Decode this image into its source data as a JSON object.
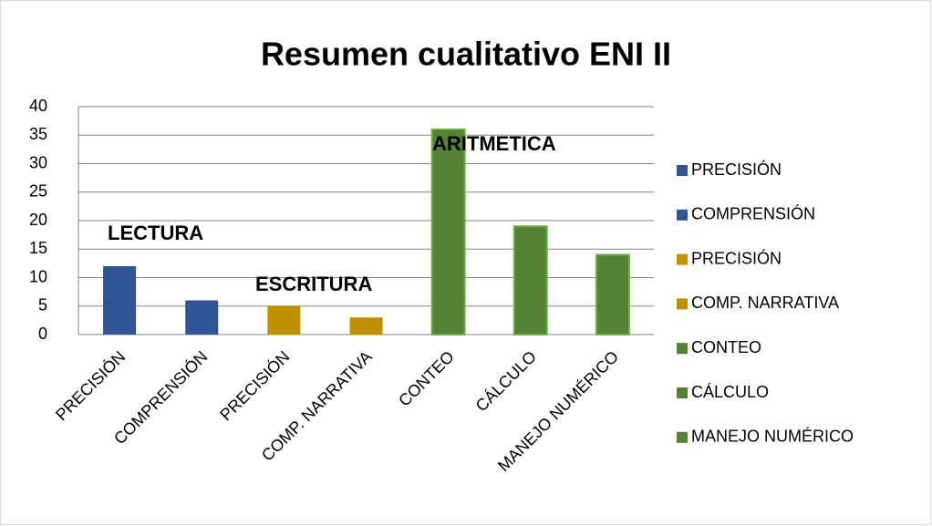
{
  "chart_data": {
    "type": "bar",
    "title": "Resumen cualitativo ENI II",
    "categories": [
      "PRECISIÓN",
      "COMPRENSIÓN",
      "PRECISIÓN",
      "COMP.  NARRATIVA",
      "CONTEO",
      "CÁLCULO",
      "MANEJO NUMÉRICO"
    ],
    "values": [
      12,
      6,
      5,
      3,
      36,
      19,
      14
    ],
    "colors": [
      "#2f5597",
      "#2f5597",
      "#bf9000",
      "#bf9000",
      "#548235",
      "#548235",
      "#548235"
    ],
    "annotations": [
      "LECTURA",
      "ESCRITURA",
      "ARITMETICA"
    ],
    "ylim": [
      0,
      40
    ],
    "yticks": [
      0,
      5,
      10,
      15,
      20,
      25,
      30,
      35,
      40
    ],
    "grid": true,
    "legend": "right"
  }
}
